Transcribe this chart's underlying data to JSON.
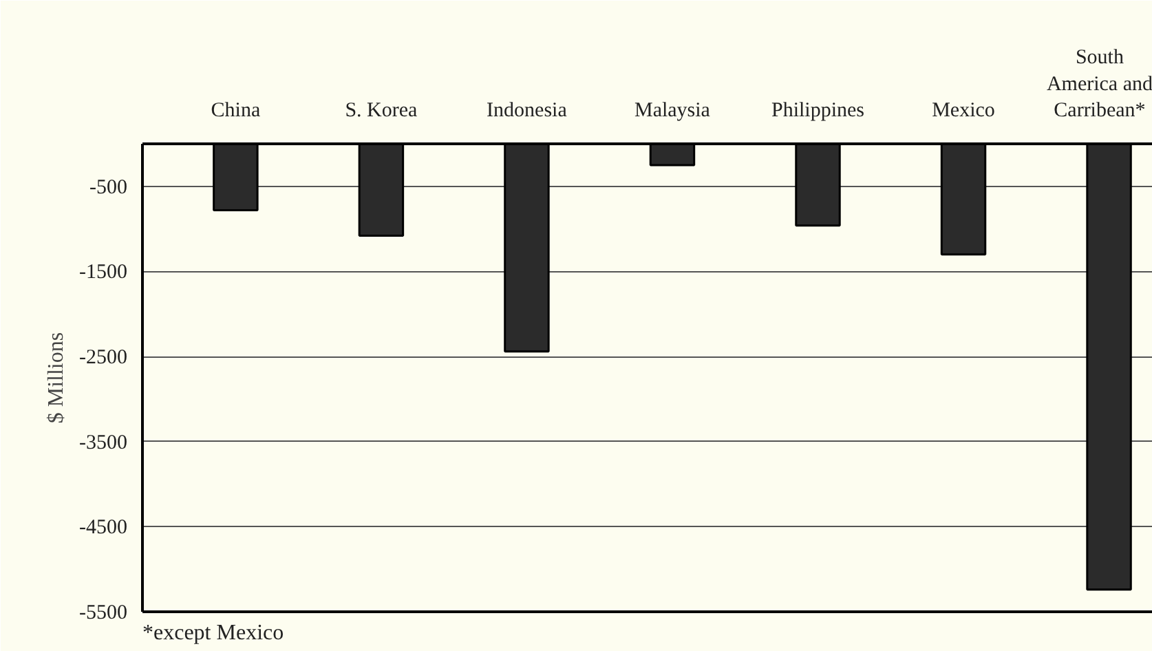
{
  "chart_data": {
    "type": "bar",
    "ylabel": "$ Millions",
    "categories": [
      "China",
      "S. Korea",
      "Indonesia",
      "Malaysia",
      "Philippines",
      "Mexico",
      "South America and Carribean*"
    ],
    "values": [
      -780,
      -1080,
      -2440,
      -250,
      -960,
      -1300,
      -5240
    ],
    "color": "#2b2b2b",
    "ylim": [
      -5500,
      0
    ],
    "yticks": [
      -500,
      -1500,
      -2500,
      -3500,
      -4500,
      -5500
    ],
    "grid": "y",
    "annotations": [
      "*except Mexico"
    ]
  }
}
